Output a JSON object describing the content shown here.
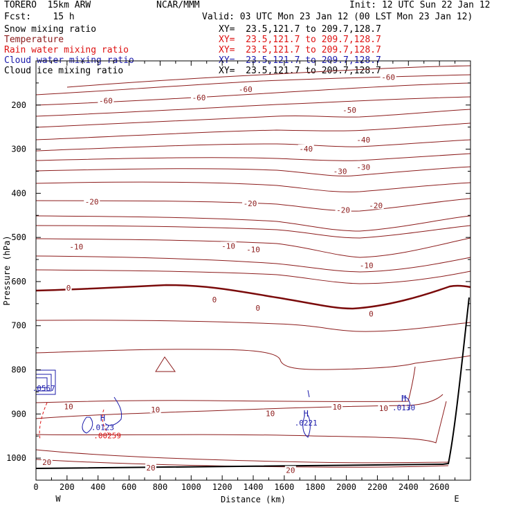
{
  "header": {
    "model": "TORERO  15km ARW",
    "center": "NCAR/MMM",
    "init": "Init: 12 UTC Sun 22 Jan 12",
    "fcst": "Fcst:    15 h",
    "valid": "Valid: 03 UTC Mon 23 Jan 12 (00 LST Mon 23 Jan 12)"
  },
  "fields": [
    {
      "name": "Snow mixing ratio",
      "xy": "XY=  23.5,121.7 to 209.7,128.7",
      "color": "#000000"
    },
    {
      "name": "Temperature",
      "xy": "XY=  23.5,121.7 to 209.7,128.7",
      "color": "#8b1a1a"
    },
    {
      "name": "Rain water mixing ratio",
      "xy": "XY=  23.5,121.7 to 209.7,128.7",
      "color": "#dd1111"
    },
    {
      "name": "Cloud water mixing ratio",
      "xy": "XY=  23.5,121.7 to 209.7,128.7",
      "color": "#1a1aaa"
    },
    {
      "name": "Cloud ice mixing ratio",
      "xy": "XY=  23.5,121.7 to 209.7,128.7",
      "color": "#000000"
    }
  ],
  "chart_data": {
    "type": "contour",
    "xlabel": "Distance (km)",
    "ylabel": "Pressure (hPa)",
    "xlim": [
      0,
      2800
    ],
    "ylim": [
      1050,
      100
    ],
    "x_ticks": [
      0,
      200,
      400,
      600,
      800,
      1000,
      1200,
      1400,
      1600,
      1800,
      2000,
      2200,
      2400,
      2600
    ],
    "y_ticks": [
      200,
      300,
      400,
      500,
      600,
      700,
      800,
      900,
      1000
    ],
    "left_end_label": "W",
    "right_end_label": "E",
    "colors": {
      "temperature": "#8b1a1a",
      "rain": "#dd1111",
      "cloud_water": "#1a1aaa",
      "terrain": "#000000"
    },
    "temperature_contour_labels": [
      {
        "text": "-60",
        "x": 450,
        "p": 190
      },
      {
        "text": "-60",
        "x": 1050,
        "p": 183
      },
      {
        "text": "-60",
        "x": 1350,
        "p": 164
      },
      {
        "text": "-60",
        "x": 2270,
        "p": 137
      },
      {
        "text": "-50",
        "x": 2020,
        "p": 211
      },
      {
        "text": "-40",
        "x": 1740,
        "p": 299
      },
      {
        "text": "-40",
        "x": 2110,
        "p": 279
      },
      {
        "text": "-30",
        "x": 1960,
        "p": 350
      },
      {
        "text": "-30",
        "x": 2110,
        "p": 341
      },
      {
        "text": "-20",
        "x": 360,
        "p": 419
      },
      {
        "text": "-20",
        "x": 1380,
        "p": 423
      },
      {
        "text": "-20",
        "x": 1980,
        "p": 438
      },
      {
        "text": "-20",
        "x": 2190,
        "p": 428
      },
      {
        "text": "-10",
        "x": 260,
        "p": 521
      },
      {
        "text": "-10",
        "x": 1240,
        "p": 519
      },
      {
        "text": "-10",
        "x": 1400,
        "p": 527
      },
      {
        "text": "-10",
        "x": 2130,
        "p": 563
      },
      {
        "text": "0",
        "x": 210,
        "p": 614
      },
      {
        "text": "0",
        "x": 1150,
        "p": 641
      },
      {
        "text": "0",
        "x": 1430,
        "p": 660
      },
      {
        "text": "0",
        "x": 2160,
        "p": 673
      },
      {
        "text": "10",
        "x": 210,
        "p": 883
      },
      {
        "text": "10",
        "x": 770,
        "p": 890
      },
      {
        "text": "10",
        "x": 1510,
        "p": 899
      },
      {
        "text": "10",
        "x": 1940,
        "p": 884
      },
      {
        "text": "10",
        "x": 2240,
        "p": 887
      },
      {
        "text": "20",
        "x": 70,
        "p": 1009
      },
      {
        "text": "20",
        "x": 740,
        "p": 1022
      },
      {
        "text": "20",
        "x": 1640,
        "p": 1027
      }
    ],
    "maxima": [
      {
        "mark": "H",
        "value": ".0221",
        "x": 1740,
        "p": 915,
        "field": "cloud_water"
      },
      {
        "mark": "H",
        "value": ".0130",
        "x": 2370,
        "p": 881,
        "field": "cloud_water"
      },
      {
        "mark": "H",
        "value": ".0123",
        "x": 430,
        "p": 925,
        "field": "cloud_water"
      },
      {
        "mark": "",
        "value": ".00259",
        "x": 460,
        "p": 944,
        "field": "rain"
      },
      {
        "mark": "",
        "value": ".0567",
        "x": 50,
        "p": 837,
        "field": "cloud_water"
      }
    ]
  }
}
